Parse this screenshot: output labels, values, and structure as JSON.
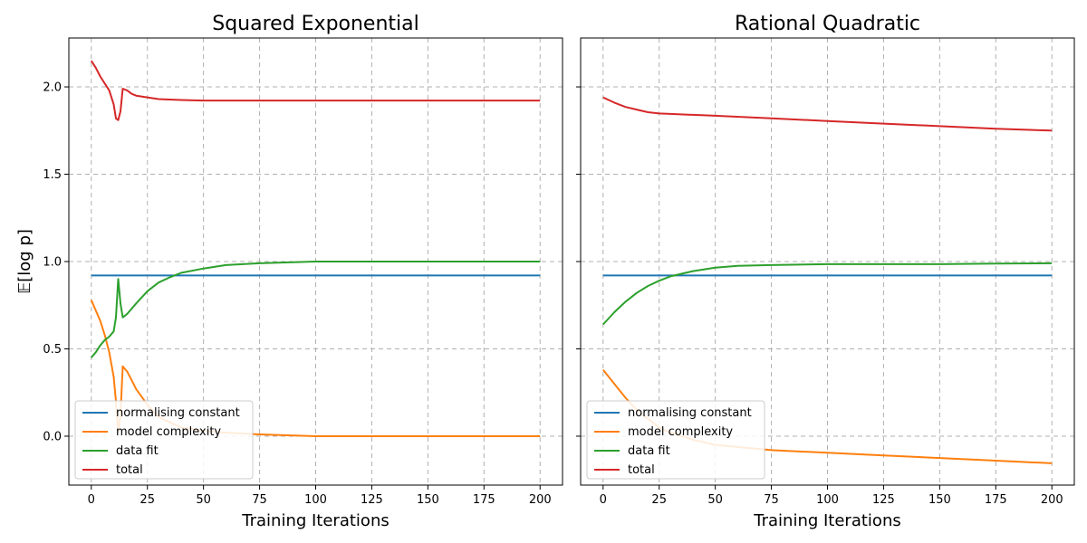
{
  "chart_data": [
    {
      "type": "line",
      "title": "Squared Exponential",
      "xlabel": "Training Iterations",
      "ylabel": "𝔼[log p]",
      "xlim": [
        -10,
        210
      ],
      "ylim": [
        -0.28,
        2.28
      ],
      "xticks": [
        "0",
        "25",
        "50",
        "75",
        "100",
        "125",
        "150",
        "175",
        "200"
      ],
      "yticks": [
        "0.0",
        "0.5",
        "1.0",
        "1.5",
        "2.0"
      ],
      "grid": true,
      "legend": "lower-left",
      "series": [
        {
          "name": "normalising constant",
          "color": "#1f77b4",
          "x": [
            0,
            200
          ],
          "y": [
            0.92,
            0.92
          ]
        },
        {
          "name": "model complexity",
          "color": "#ff7f0e",
          "x": [
            0,
            2,
            4,
            6,
            8,
            10,
            11,
            12,
            13,
            14,
            16,
            18,
            20,
            25,
            30,
            40,
            50,
            60,
            75,
            100,
            125,
            150,
            175,
            200
          ],
          "y": [
            0.78,
            0.72,
            0.66,
            0.58,
            0.48,
            0.34,
            0.2,
            0.02,
            0.12,
            0.4,
            0.37,
            0.32,
            0.27,
            0.18,
            0.11,
            0.05,
            0.03,
            0.02,
            0.01,
            0.0,
            0.0,
            0.0,
            0.0,
            0.0
          ]
        },
        {
          "name": "data fit",
          "color": "#2ca02c",
          "x": [
            0,
            2,
            4,
            6,
            8,
            10,
            11,
            12,
            13,
            14,
            16,
            20,
            25,
            30,
            35,
            40,
            50,
            60,
            75,
            100,
            125,
            150,
            175,
            200
          ],
          "y": [
            0.45,
            0.48,
            0.52,
            0.55,
            0.57,
            0.6,
            0.68,
            0.9,
            0.76,
            0.68,
            0.7,
            0.76,
            0.83,
            0.88,
            0.91,
            0.935,
            0.96,
            0.98,
            0.99,
            1.0,
            1.0,
            1.0,
            1.0,
            1.0
          ]
        },
        {
          "name": "total",
          "color": "#d62728",
          "x": [
            0,
            2,
            4,
            6,
            8,
            10,
            11,
            12,
            13,
            14,
            16,
            18,
            20,
            25,
            30,
            40,
            50,
            75,
            100,
            125,
            150,
            175,
            200
          ],
          "y": [
            2.15,
            2.11,
            2.06,
            2.02,
            1.98,
            1.9,
            1.82,
            1.81,
            1.86,
            1.99,
            1.98,
            1.96,
            1.95,
            1.94,
            1.93,
            1.925,
            1.922,
            1.922,
            1.922,
            1.922,
            1.922,
            1.922,
            1.922
          ]
        }
      ]
    },
    {
      "type": "line",
      "title": "Rational Quadratic",
      "xlabel": "Training Iterations",
      "ylabel": "",
      "xlim": [
        -10,
        210
      ],
      "ylim": [
        -0.28,
        2.28
      ],
      "xticks": [
        "0",
        "25",
        "50",
        "75",
        "100",
        "125",
        "150",
        "175",
        "200"
      ],
      "yticks": [
        "",
        "",
        "",
        "",
        ""
      ],
      "grid": true,
      "legend": "lower-left",
      "series": [
        {
          "name": "normalising constant",
          "color": "#1f77b4",
          "x": [
            0,
            200
          ],
          "y": [
            0.92,
            0.92
          ]
        },
        {
          "name": "model complexity",
          "color": "#ff7f0e",
          "x": [
            0,
            5,
            10,
            15,
            20,
            25,
            30,
            40,
            50,
            75,
            100,
            125,
            150,
            175,
            200
          ],
          "y": [
            0.38,
            0.3,
            0.22,
            0.15,
            0.1,
            0.05,
            0.02,
            -0.02,
            -0.05,
            -0.08,
            -0.095,
            -0.11,
            -0.125,
            -0.14,
            -0.155
          ]
        },
        {
          "name": "data fit",
          "color": "#2ca02c",
          "x": [
            0,
            5,
            10,
            15,
            20,
            25,
            30,
            40,
            50,
            60,
            75,
            100,
            125,
            150,
            175,
            200
          ],
          "y": [
            0.64,
            0.71,
            0.77,
            0.82,
            0.86,
            0.89,
            0.915,
            0.945,
            0.965,
            0.975,
            0.98,
            0.985,
            0.985,
            0.985,
            0.988,
            0.99
          ]
        },
        {
          "name": "total",
          "color": "#d62728",
          "x": [
            0,
            5,
            10,
            15,
            20,
            25,
            30,
            50,
            75,
            100,
            125,
            150,
            175,
            200
          ],
          "y": [
            1.94,
            1.91,
            1.885,
            1.87,
            1.855,
            1.848,
            1.845,
            1.835,
            1.82,
            1.805,
            1.79,
            1.775,
            1.76,
            1.75
          ]
        }
      ]
    }
  ]
}
